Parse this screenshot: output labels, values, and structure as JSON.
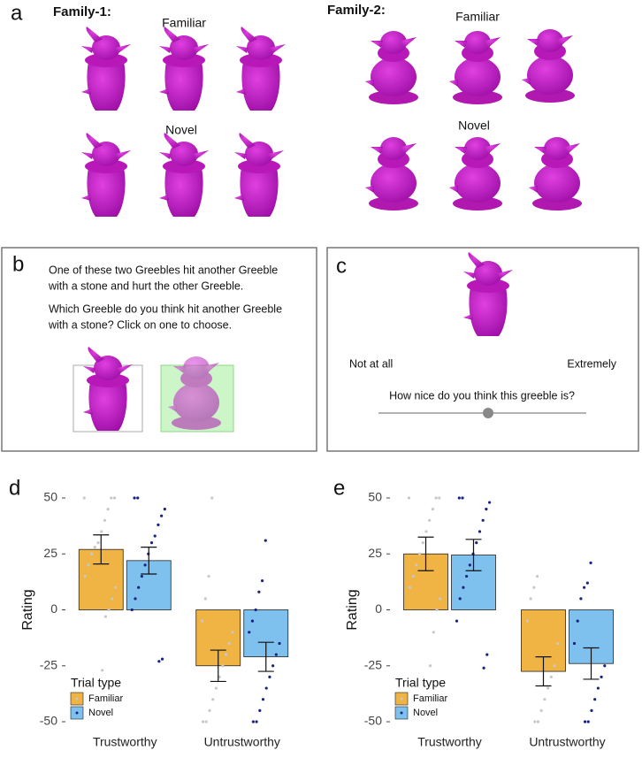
{
  "panel_a": {
    "label": "a",
    "families": [
      {
        "title": "Family-1:",
        "groups": [
          "Familiar",
          "Novel"
        ]
      },
      {
        "title": "Family-2:",
        "groups": [
          "Familiar",
          "Novel"
        ]
      }
    ]
  },
  "panel_b": {
    "label": "b",
    "lines": [
      "One of these two Greebles hit another Greeble",
      "with a stone and hurt the other Greeble.",
      "Which Greeble do you think hit another Greeble",
      "with a stone? Click on one to choose."
    ]
  },
  "panel_c": {
    "label": "c",
    "scale_min": "Not at all",
    "scale_max": "Extremely",
    "question": "How nice do you think this greeble is?"
  },
  "chart_data": [
    {
      "type": "bar",
      "panel_label": "d",
      "categories": [
        "Trustworthy",
        "Untrustworthy"
      ],
      "series": [
        {
          "name": "Familiar",
          "color": "#f0b445",
          "point_color": "#c8c8c8",
          "values": [
            27,
            -25
          ],
          "errors": [
            6.5,
            7
          ],
          "points": [
            [
              50,
              50,
              50,
              45,
              40,
              35,
              30,
              28,
              25,
              20,
              15,
              10,
              5,
              0,
              -3,
              -27
            ],
            [
              50,
              15,
              5,
              -5,
              -10,
              -15,
              -20,
              -25,
              -30,
              -35,
              -40,
              -45,
              -50,
              -50
            ]
          ]
        },
        {
          "name": "Novel",
          "color": "#7ec0ee",
          "point_color": "#1a237e",
          "values": [
            22,
            -21
          ],
          "errors": [
            6,
            6.5
          ],
          "points": [
            [
              50,
              50,
              45,
              42,
              38,
              33,
              30,
              25,
              20,
              15,
              10,
              5,
              0,
              -22,
              -23
            ],
            [
              31,
              13,
              8,
              0,
              -5,
              -10,
              -15,
              -20,
              -25,
              -30,
              -35,
              -40,
              -45,
              -50,
              -50
            ]
          ]
        }
      ],
      "ylim": [
        -52,
        52
      ],
      "yticks": [
        -50,
        -25,
        0,
        25,
        50
      ],
      "ylabel": "Rating",
      "legend_title": "Trial type",
      "legend": "bottom left"
    },
    {
      "type": "bar",
      "panel_label": "e",
      "categories": [
        "Trustworthy",
        "Untrustworthy"
      ],
      "series": [
        {
          "name": "Familiar",
          "color": "#f0b445",
          "point_color": "#c8c8c8",
          "values": [
            25,
            -27.5
          ],
          "errors": [
            7.5,
            6.5
          ],
          "points": [
            [
              50,
              50,
              50,
              45,
              40,
              35,
              30,
              25,
              20,
              15,
              10,
              5,
              0,
              -10,
              -25
            ],
            [
              15,
              10,
              5,
              -5,
              -15,
              -25,
              -30,
              -35,
              -40,
              -45,
              -50,
              -50
            ]
          ]
        },
        {
          "name": "Novel",
          "color": "#7ec0ee",
          "point_color": "#1a237e",
          "values": [
            24.5,
            -24
          ],
          "errors": [
            7,
            7
          ],
          "points": [
            [
              50,
              50,
              48,
              45,
              40,
              35,
              30,
              25,
              20,
              15,
              10,
              5,
              -5,
              -20,
              -26
            ],
            [
              21,
              12,
              10,
              5,
              -5,
              -15,
              -25,
              -30,
              -35,
              -40,
              -45,
              -50,
              -50
            ]
          ]
        }
      ],
      "ylim": [
        -52,
        52
      ],
      "yticks": [
        -50,
        -25,
        0,
        25,
        50
      ],
      "ylabel": "Rating",
      "legend_title": "Trial type",
      "legend": "bottom left"
    }
  ]
}
